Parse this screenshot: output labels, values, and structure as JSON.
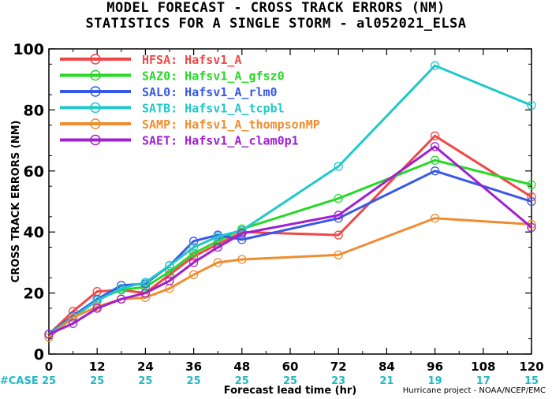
{
  "header": {
    "title_line1": "MODEL FORECAST - CROSS TRACK ERRORS (NM)",
    "title_line2": "STATISTICS FOR A SINGLE STORM - al052021_ELSA"
  },
  "credit": "Hurricane project - NOAA/NCEP/EMC",
  "chart_data": {
    "type": "line",
    "title": "MODEL FORECAST - CROSS TRACK ERRORS (NM)",
    "subtitle": "STATISTICS FOR A SINGLE STORM - al052021_ELSA",
    "xlabel": "Forecast lead time (hr)",
    "ylabel": "CROSS TRACK ERRORS (NM)",
    "xlim": [
      0,
      120
    ],
    "ylim": [
      0,
      100
    ],
    "xticks": [
      0,
      12,
      24,
      36,
      48,
      60,
      72,
      84,
      96,
      108,
      120
    ],
    "yticks": [
      0,
      20,
      40,
      60,
      80,
      100
    ],
    "grid": false,
    "legend_position": "top-left",
    "case_label": "#CASE",
    "case_x": [
      0,
      12,
      24,
      36,
      48,
      60,
      72,
      84,
      96,
      108,
      120
    ],
    "case_counts": [
      "25",
      "25",
      "25",
      "25",
      "25",
      "25",
      "23",
      "21",
      "19",
      "17",
      "15"
    ],
    "case_color": "#20b8c8",
    "series": [
      {
        "name": "HFSA:",
        "label": "Hafsv1_A",
        "color": "#f04848",
        "x": [
          0,
          6,
          12,
          18,
          24,
          30,
          36,
          42,
          48,
          72,
          96,
          120
        ],
        "y": [
          6.5,
          14,
          20.5,
          21,
          20,
          26,
          32,
          36,
          40,
          39,
          71.5,
          51.5
        ]
      },
      {
        "name": "SAZ0:",
        "label": "Hafsv1_A_gfsz0",
        "color": "#28d828",
        "x": [
          0,
          6,
          12,
          18,
          24,
          30,
          36,
          42,
          48,
          72,
          96,
          120
        ],
        "y": [
          6.5,
          12,
          18,
          21,
          22,
          27,
          33,
          37,
          41,
          51,
          63.5,
          55.5
        ]
      },
      {
        "name": "SAL0:",
        "label": "Hafsv1_A_rlm0",
        "color": "#3858e8",
        "x": [
          0,
          6,
          12,
          18,
          24,
          30,
          36,
          42,
          48,
          72,
          96,
          120
        ],
        "y": [
          6.5,
          12.5,
          18,
          22.5,
          23,
          29,
          37,
          39,
          37.5,
          44.5,
          60,
          50
        ]
      },
      {
        "name": "SATB:",
        "label": "Hafsv1_A_tcpbl",
        "color": "#20c8c8",
        "x": [
          0,
          6,
          12,
          18,
          24,
          30,
          36,
          42,
          48,
          72,
          96,
          120
        ],
        "y": [
          6.5,
          12,
          17.5,
          21.5,
          23.5,
          29,
          35,
          38.5,
          40.5,
          61.5,
          94.5,
          81.5
        ]
      },
      {
        "name": "SAMP:",
        "label": "Hafsv1_A_thompsonMP",
        "color": "#f08c30",
        "x": [
          0,
          6,
          12,
          18,
          24,
          30,
          36,
          42,
          48,
          72,
          96,
          120
        ],
        "y": [
          5.5,
          12,
          15.5,
          18,
          18.5,
          21.5,
          26,
          30,
          31,
          32.5,
          44.5,
          42.5
        ]
      },
      {
        "name": "SAET:",
        "label": "Hafsv1_A_clam0p1",
        "color": "#a020d0",
        "x": [
          0,
          6,
          12,
          18,
          24,
          30,
          36,
          42,
          48,
          72,
          96,
          120
        ],
        "y": [
          6.5,
          10,
          15,
          18,
          20,
          24,
          30,
          35,
          39.5,
          45.5,
          68,
          41.5
        ]
      }
    ]
  }
}
